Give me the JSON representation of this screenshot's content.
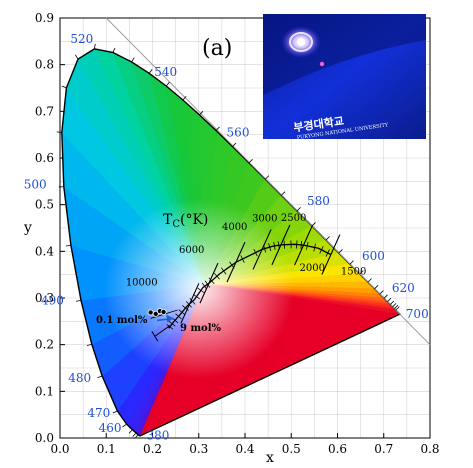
{
  "chart_data": {
    "type": "scatter",
    "title": "",
    "panel_label": "(a)",
    "xlabel": "x",
    "ylabel": "y",
    "xlim": [
      0.0,
      0.8
    ],
    "ylim": [
      0.0,
      0.9
    ],
    "x_ticks": [
      "0.0",
      "0.1",
      "0.2",
      "0.3",
      "0.4",
      "0.5",
      "0.6",
      "0.7",
      "0.8"
    ],
    "y_ticks": [
      "0.0",
      "0.1",
      "0.2",
      "0.3",
      "0.4",
      "0.5",
      "0.6",
      "0.7",
      "0.8",
      "0.9"
    ],
    "x_tick_values": [
      0.0,
      0.1,
      0.2,
      0.3,
      0.4,
      0.5,
      0.6,
      0.7,
      0.8
    ],
    "y_tick_values": [
      0.0,
      0.1,
      0.2,
      0.3,
      0.4,
      0.5,
      0.6,
      0.7,
      0.8,
      0.9
    ],
    "grid": true,
    "spectral_locus": [
      [
        0.1741,
        0.005
      ],
      [
        0.1738,
        0.0049
      ],
      [
        0.1733,
        0.0048
      ],
      [
        0.1726,
        0.0048
      ],
      [
        0.1714,
        0.0051
      ],
      [
        0.1689,
        0.0069
      ],
      [
        0.1644,
        0.0109
      ],
      [
        0.1566,
        0.0177
      ],
      [
        0.144,
        0.0297
      ],
      [
        0.1241,
        0.0578
      ],
      [
        0.0913,
        0.1327
      ],
      [
        0.0687,
        0.2007
      ],
      [
        0.0454,
        0.295
      ],
      [
        0.0235,
        0.4127
      ],
      [
        0.0082,
        0.5384
      ],
      [
        0.0039,
        0.6548
      ],
      [
        0.0139,
        0.7502
      ],
      [
        0.0389,
        0.812
      ],
      [
        0.0743,
        0.8338
      ],
      [
        0.1142,
        0.8262
      ],
      [
        0.1547,
        0.8059
      ],
      [
        0.1929,
        0.7816
      ],
      [
        0.2296,
        0.7543
      ],
      [
        0.2658,
        0.7243
      ],
      [
        0.3016,
        0.6923
      ],
      [
        0.3373,
        0.6589
      ],
      [
        0.3731,
        0.6245
      ],
      [
        0.4087,
        0.5896
      ],
      [
        0.4441,
        0.5547
      ],
      [
        0.4788,
        0.5202
      ],
      [
        0.5125,
        0.4866
      ],
      [
        0.5448,
        0.4544
      ],
      [
        0.5752,
        0.4242
      ],
      [
        0.6029,
        0.3965
      ],
      [
        0.627,
        0.3725
      ],
      [
        0.6482,
        0.3514
      ],
      [
        0.6658,
        0.334
      ],
      [
        0.6801,
        0.3197
      ],
      [
        0.6915,
        0.3083
      ],
      [
        0.7006,
        0.2993
      ],
      [
        0.7079,
        0.292
      ],
      [
        0.714,
        0.2859
      ],
      [
        0.719,
        0.2809
      ],
      [
        0.723,
        0.277
      ],
      [
        0.726,
        0.274
      ],
      [
        0.7347,
        0.2653
      ]
    ],
    "wavelength_labels": [
      {
        "text": "380",
        "x": 0.1741,
        "y": 0.005
      },
      {
        "text": "460",
        "x": 0.144,
        "y": 0.0297
      },
      {
        "text": "470",
        "x": 0.1241,
        "y": 0.0578
      },
      {
        "text": "480",
        "x": 0.0913,
        "y": 0.1327
      },
      {
        "text": "490",
        "x": 0.0454,
        "y": 0.295
      },
      {
        "text": "500",
        "x": 0.0082,
        "y": 0.5384
      },
      {
        "text": "520",
        "x": 0.0743,
        "y": 0.8338
      },
      {
        "text": "540",
        "x": 0.2296,
        "y": 0.7543
      },
      {
        "text": "560",
        "x": 0.3731,
        "y": 0.6245
      },
      {
        "text": "580",
        "x": 0.5125,
        "y": 0.4866
      },
      {
        "text": "600",
        "x": 0.627,
        "y": 0.3725
      },
      {
        "text": "620",
        "x": 0.6915,
        "y": 0.3083
      },
      {
        "text": "700",
        "x": 0.7347,
        "y": 0.2653
      }
    ],
    "planckian_locus": [
      [
        0.235,
        0.235
      ],
      [
        0.245,
        0.248
      ],
      [
        0.26,
        0.265
      ],
      [
        0.275,
        0.283
      ],
      [
        0.2903,
        0.2962
      ],
      [
        0.3093,
        0.323
      ],
      [
        0.3221,
        0.3318
      ],
      [
        0.3451,
        0.3516
      ],
      [
        0.3805,
        0.3768
      ],
      [
        0.4369,
        0.4041
      ],
      [
        0.4589,
        0.4105
      ],
      [
        0.4777,
        0.4138
      ],
      [
        0.5068,
        0.4151
      ],
      [
        0.5266,
        0.4133
      ],
      [
        0.5586,
        0.4065
      ],
      [
        0.5857,
        0.3931
      ]
    ],
    "cct_labels": [
      {
        "text": "10000",
        "x": 0.2807,
        "y": 0.2883
      },
      {
        "text": "6000",
        "x": 0.3221,
        "y": 0.3318
      },
      {
        "text": "4000",
        "x": 0.3805,
        "y": 0.3768
      },
      {
        "text": "3000",
        "x": 0.4369,
        "y": 0.4041
      },
      {
        "text": "2500",
        "x": 0.4777,
        "y": 0.4138
      },
      {
        "text": "2000",
        "x": 0.5266,
        "y": 0.4133
      },
      {
        "text": "1500",
        "x": 0.5857,
        "y": 0.3931
      }
    ],
    "cct_axis_label": {
      "main": "T",
      "sub": "C",
      "unit": "(°K)"
    },
    "sample_points": {
      "name": "",
      "x": [
        0.196,
        0.207,
        0.216,
        0.224
      ],
      "y": [
        0.269,
        0.266,
        0.272,
        0.27
      ],
      "start_label": "0.1 mol%",
      "end_label": "9 mol%"
    },
    "inset": {
      "description_text_korean": "부경대학교",
      "description_text_english": "PUKYONG NATIONAL UNIVERSITY"
    }
  }
}
